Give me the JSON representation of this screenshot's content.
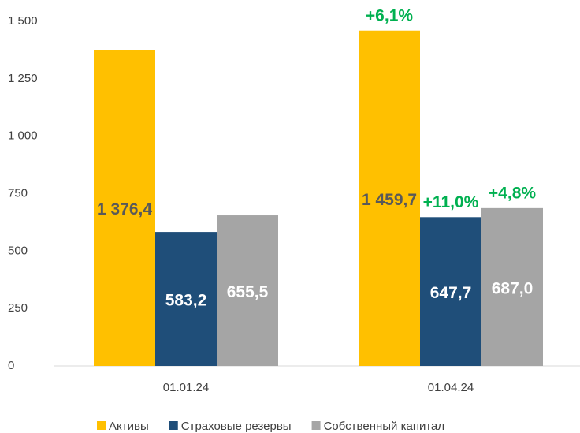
{
  "chart_data": {
    "type": "bar",
    "categories": [
      "01.01.24",
      "01.04.24"
    ],
    "series": [
      {
        "name": "Активы",
        "color": "#ffc000",
        "values": [
          1376.4,
          1459.7
        ],
        "value_labels": [
          "1 376,4",
          "1 459,7"
        ],
        "annotations": [
          null,
          "+6,1%"
        ]
      },
      {
        "name": "Страховые резервы",
        "color": "#1f4e79",
        "values": [
          583.2,
          647.7
        ],
        "value_labels": [
          "583,2",
          "647,7"
        ],
        "annotations": [
          null,
          "+11,0%"
        ]
      },
      {
        "name": "Собственный капитал",
        "color": "#a5a5a5",
        "values": [
          655.5,
          687.0
        ],
        "value_labels": [
          "655,5",
          "687,0"
        ],
        "annotations": [
          null,
          "+4,8%"
        ]
      }
    ],
    "ylim": [
      0,
      1500
    ],
    "yticks": [
      0,
      250,
      500,
      750,
      {
        "value": 1000,
        "label": "1 000"
      },
      {
        "value": 1250,
        "label": "1 250"
      },
      {
        "value": 1500,
        "label": "1 500"
      }
    ],
    "grid": false,
    "legend": "bottom"
  }
}
